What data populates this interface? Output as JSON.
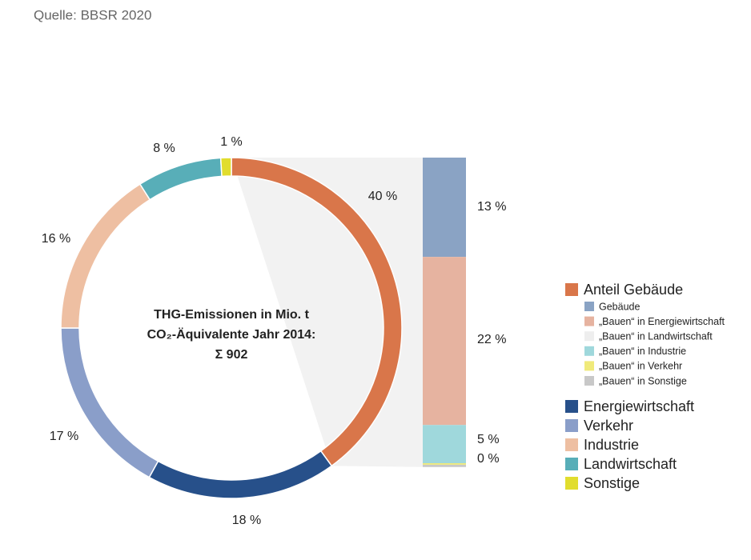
{
  "chart_data": {
    "type": "pie",
    "source": "Quelle: BBSR 2020",
    "center_text": [
      "THG-Emissionen in Mio. t",
      "CO₂-Äquivalente Jahr 2014:",
      "Σ 902"
    ],
    "categories": [
      "Anteil Gebäude",
      "Energiewirtschaft",
      "Verkehr",
      "Industrie",
      "Landwirtschaft",
      "Sonstige"
    ],
    "values": [
      40,
      18,
      17,
      16,
      8,
      1
    ],
    "value_labels": [
      "40 %",
      "18 %",
      "17 %",
      "16 %",
      "8 %",
      "1 %"
    ],
    "colors": [
      "#d9764a",
      "#27508a",
      "#8a9ec9",
      "#eebfa2",
      "#58aeb8",
      "#e1dd2e"
    ],
    "breakdown": {
      "type": "bar",
      "categories": [
        "Gebäude",
        "„Bauen“ in Energiewirtschaft",
        "„Bauen“ in Landwirtschaft",
        "„Bauen“ in Industrie",
        "„Bauen“ in Verkehr",
        "„Bauen“ in Sonstige"
      ],
      "values": [
        13,
        22,
        0,
        5,
        0.2,
        0.3
      ],
      "value_labels": [
        "13 %",
        "22 %",
        null,
        "5 %",
        null,
        "0 %"
      ],
      "colors": [
        "#8aa3c4",
        "#e6b3a0",
        "#eeeeee",
        "#9fd8dc",
        "#f0ea7a",
        "#c8c8c8"
      ]
    }
  }
}
